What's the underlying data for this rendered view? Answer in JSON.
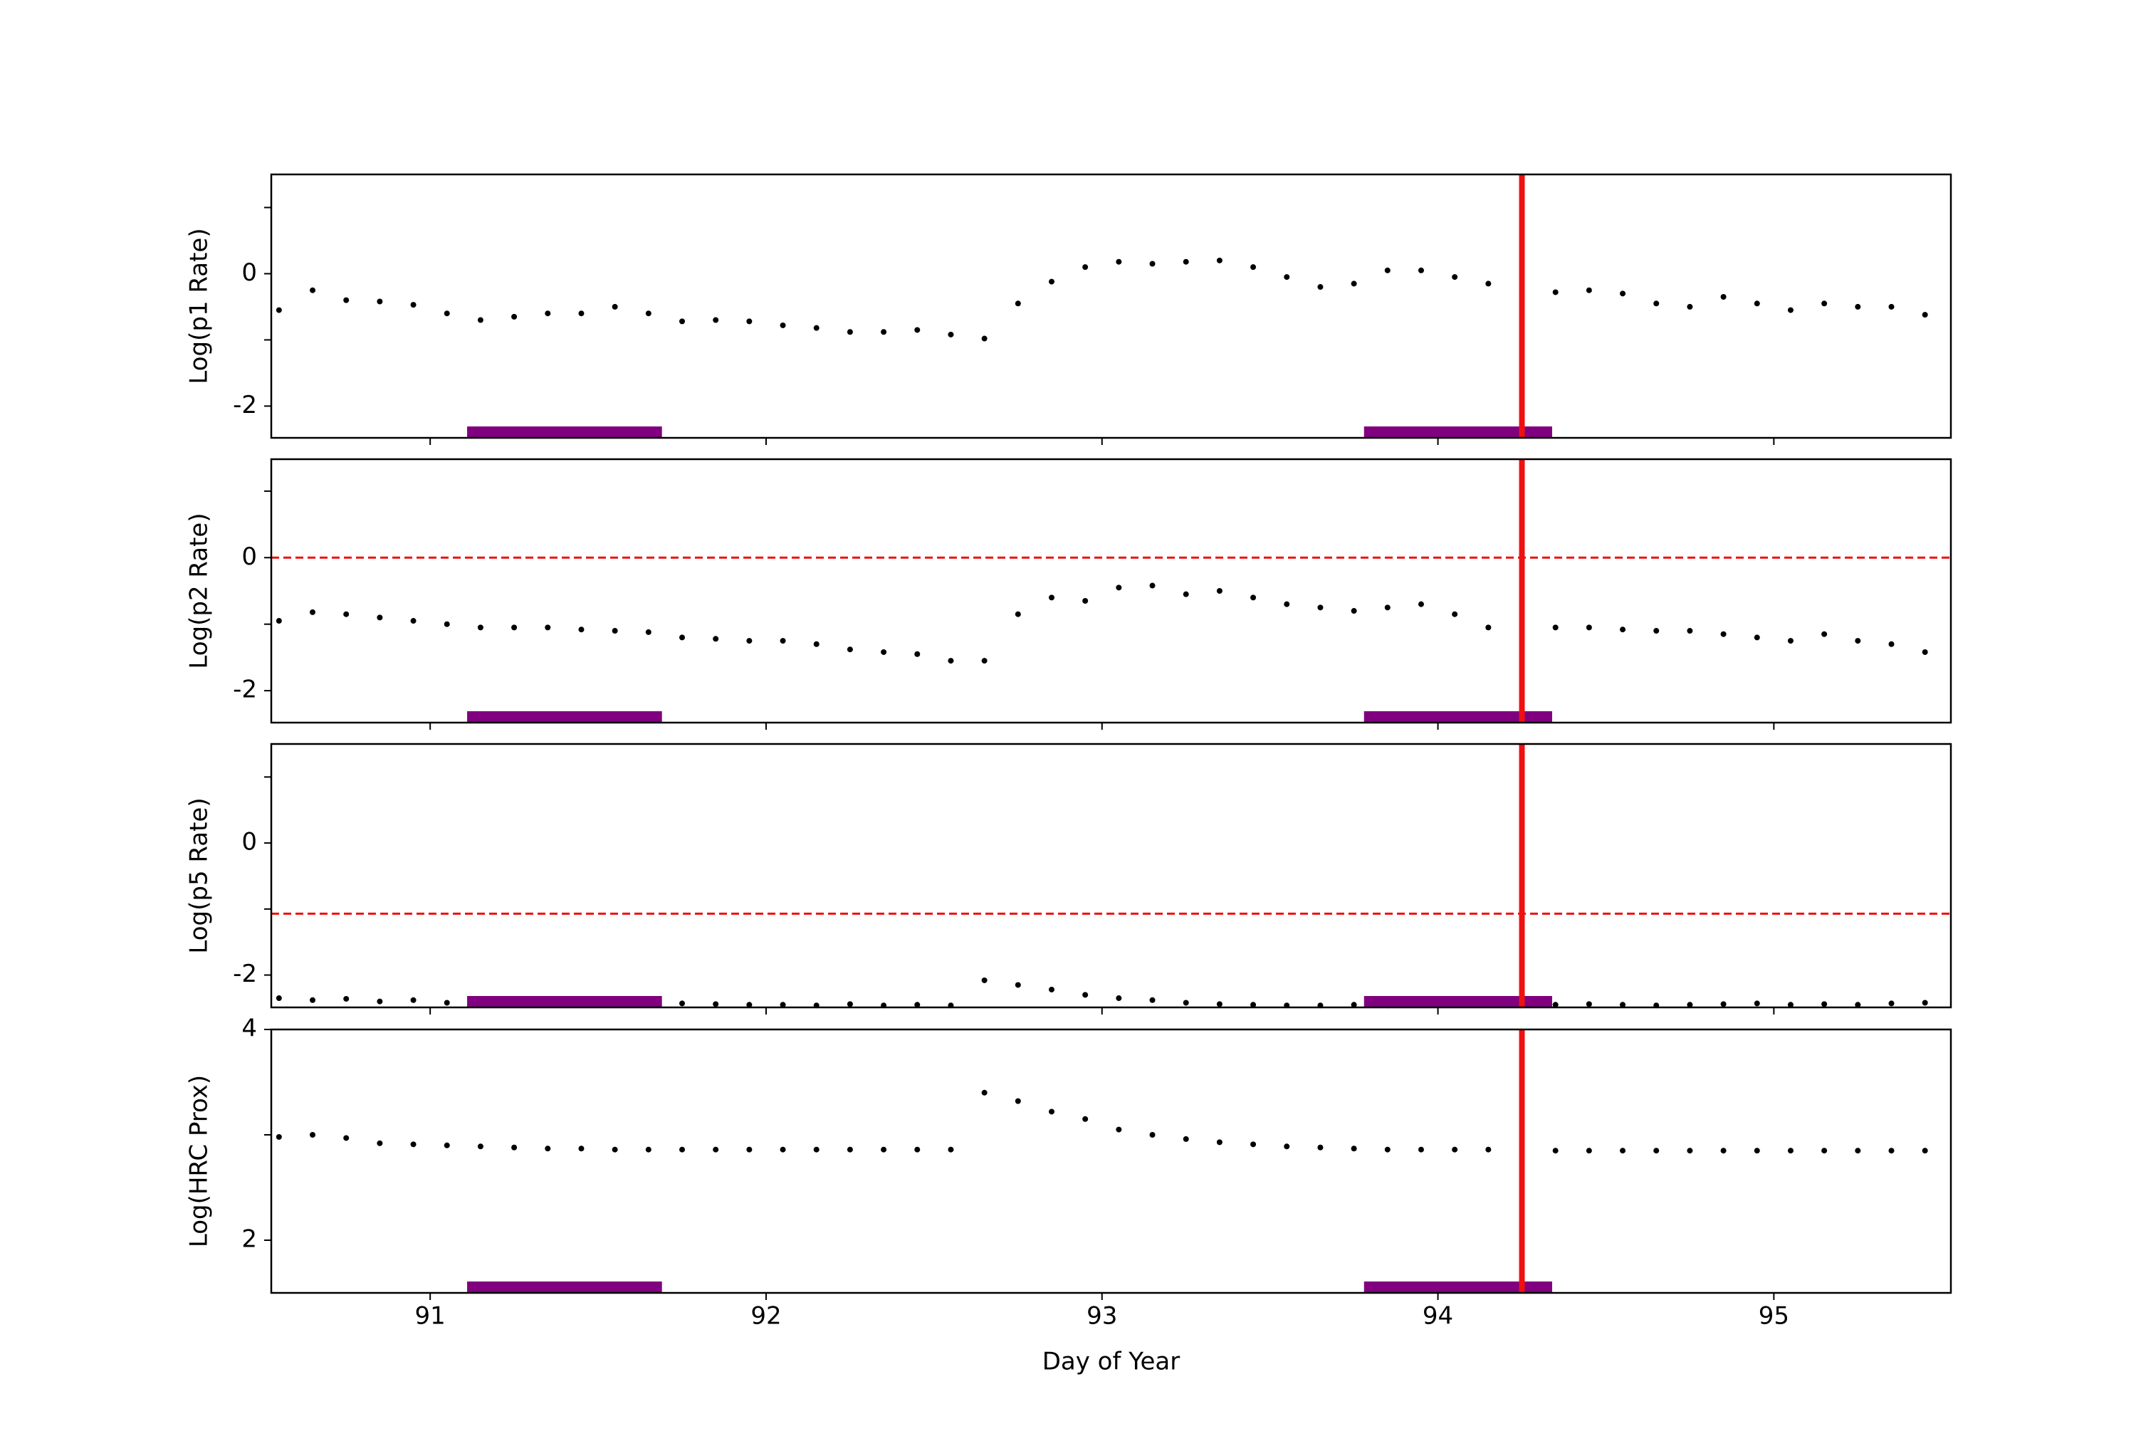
{
  "chart_data": [
    {
      "type": "scatter",
      "ylabel": "Log(p1 Rate)",
      "xlim": [
        90.527,
        95.527
      ],
      "ylim": [
        -2.48,
        1.5
      ],
      "xticks": [
        91,
        92,
        93,
        94,
        95
      ],
      "yticks": [
        -2,
        0
      ],
      "yticks_minor": [
        -1,
        1
      ],
      "color": "#000000",
      "x": [
        90.55,
        90.65,
        90.75,
        90.85,
        90.95,
        91.05,
        91.15,
        91.25,
        91.35,
        91.45,
        91.55,
        91.65,
        91.75,
        91.85,
        91.95,
        92.05,
        92.15,
        92.25,
        92.35,
        92.45,
        92.55,
        92.65,
        92.75,
        92.85,
        92.95,
        93.05,
        93.15,
        93.25,
        93.35,
        93.45,
        93.55,
        93.65,
        93.75,
        93.85,
        93.95,
        94.05,
        94.15,
        94.25,
        94.35,
        94.45,
        94.55,
        94.65,
        94.75,
        94.85,
        94.95,
        95.05,
        95.15,
        95.25,
        95.35,
        95.45
      ],
      "values": [
        -0.55,
        -0.25,
        -0.4,
        -0.42,
        -0.47,
        -0.6,
        -0.7,
        -0.65,
        -0.6,
        -0.6,
        -0.5,
        -0.6,
        -0.72,
        -0.7,
        -0.72,
        -0.78,
        -0.82,
        -0.88,
        -0.88,
        -0.85,
        -0.92,
        -0.98,
        -0.45,
        -0.12,
        0.1,
        0.18,
        0.15,
        0.18,
        0.2,
        0.1,
        -0.05,
        -0.2,
        -0.15,
        0.05,
        0.05,
        -0.05,
        -0.15,
        -0.25,
        -0.28,
        -0.25,
        -0.3,
        -0.45,
        -0.5,
        -0.35,
        -0.45,
        -0.55,
        -0.45,
        -0.5,
        -0.5,
        -0.62
      ],
      "vline": {
        "value": 94.25,
        "color": "#ee1111"
      },
      "intervals": {
        "color": "#800080",
        "ranges": [
          [
            91.11,
            91.69
          ],
          [
            93.78,
            94.34
          ]
        ]
      }
    },
    {
      "type": "scatter",
      "ylabel": "Log(p2 Rate)",
      "xlim": [
        90.527,
        95.527
      ],
      "ylim": [
        -2.48,
        1.48
      ],
      "xticks": [
        91,
        92,
        93,
        94,
        95
      ],
      "yticks": [
        -2,
        0
      ],
      "yticks_minor": [
        -1,
        1
      ],
      "color": "#000000",
      "x": [
        90.55,
        90.65,
        90.75,
        90.85,
        90.95,
        91.05,
        91.15,
        91.25,
        91.35,
        91.45,
        91.55,
        91.65,
        91.75,
        91.85,
        91.95,
        92.05,
        92.15,
        92.25,
        92.35,
        92.45,
        92.55,
        92.65,
        92.75,
        92.85,
        92.95,
        93.05,
        93.15,
        93.25,
        93.35,
        93.45,
        93.55,
        93.65,
        93.75,
        93.85,
        93.95,
        94.05,
        94.15,
        94.25,
        94.35,
        94.45,
        94.55,
        94.65,
        94.75,
        94.85,
        94.95,
        95.05,
        95.15,
        95.25,
        95.35,
        95.45
      ],
      "values": [
        -0.95,
        -0.82,
        -0.85,
        -0.9,
        -0.95,
        -1.0,
        -1.05,
        -1.05,
        -1.05,
        -1.08,
        -1.1,
        -1.12,
        -1.2,
        -1.22,
        -1.25,
        -1.25,
        -1.3,
        -1.38,
        -1.42,
        -1.45,
        -1.55,
        -1.55,
        -0.85,
        -0.6,
        -0.65,
        -0.45,
        -0.42,
        -0.55,
        -0.5,
        -0.6,
        -0.7,
        -0.75,
        -0.8,
        -0.75,
        -0.7,
        -0.85,
        -1.05,
        -1.08,
        -1.05,
        -1.05,
        -1.08,
        -1.1,
        -1.1,
        -1.15,
        -1.2,
        -1.25,
        -1.15,
        -1.25,
        -1.3,
        -1.42
      ],
      "hline": {
        "value": 0,
        "color": "#ee1111"
      },
      "vline": {
        "value": 94.25,
        "color": "#ee1111"
      },
      "intervals": {
        "color": "#800080",
        "ranges": [
          [
            91.11,
            91.69
          ],
          [
            93.78,
            94.34
          ]
        ]
      }
    },
    {
      "type": "scatter",
      "ylabel": "Log(p5 Rate)",
      "xlim": [
        90.527,
        95.527
      ],
      "ylim": [
        -2.49,
        1.5
      ],
      "xticks": [
        91,
        92,
        93,
        94,
        95
      ],
      "yticks": [
        -2,
        0
      ],
      "yticks_minor": [
        -1,
        1
      ],
      "color": "#000000",
      "x": [
        90.55,
        90.65,
        90.75,
        90.85,
        90.95,
        91.05,
        91.15,
        91.25,
        91.35,
        91.45,
        91.55,
        91.65,
        91.75,
        91.85,
        91.95,
        92.05,
        92.15,
        92.25,
        92.35,
        92.45,
        92.55,
        92.65,
        92.75,
        92.85,
        92.95,
        93.05,
        93.15,
        93.25,
        93.35,
        93.45,
        93.55,
        93.65,
        93.75,
        93.85,
        93.95,
        94.05,
        94.15,
        94.25,
        94.35,
        94.45,
        94.55,
        94.65,
        94.75,
        94.85,
        94.95,
        95.05,
        95.15,
        95.25,
        95.35,
        95.45
      ],
      "values": [
        -2.35,
        -2.38,
        -2.36,
        -2.4,
        -2.38,
        -2.42,
        -2.4,
        -2.42,
        -2.4,
        -2.44,
        -2.42,
        -2.45,
        -2.43,
        -2.44,
        -2.45,
        -2.45,
        -2.46,
        -2.44,
        -2.46,
        -2.45,
        -2.46,
        -2.08,
        -2.15,
        -2.22,
        -2.3,
        -2.35,
        -2.38,
        -2.42,
        -2.44,
        -2.45,
        -2.46,
        -2.46,
        -2.45,
        -2.46,
        -2.45,
        -2.44,
        -2.45,
        -2.46,
        -2.45,
        -2.44,
        -2.45,
        -2.46,
        -2.45,
        -2.44,
        -2.43,
        -2.45,
        -2.44,
        -2.45,
        -2.43,
        -2.42
      ],
      "hline": {
        "value": -1.07,
        "color": "#ee1111"
      },
      "vline": {
        "value": 94.25,
        "color": "#ee1111"
      },
      "intervals": {
        "color": "#800080",
        "ranges": [
          [
            91.11,
            91.69
          ],
          [
            93.78,
            94.34
          ]
        ]
      }
    },
    {
      "type": "scatter",
      "ylabel": "Log(HRC Prox)",
      "xlabel": "Day of Year",
      "xtick_labels": true,
      "xlim": [
        90.527,
        95.527
      ],
      "ylim": [
        1.5,
        4
      ],
      "xticks": [
        91,
        92,
        93,
        94,
        95
      ],
      "yticks": [
        2,
        4
      ],
      "yticks_minor": [
        3
      ],
      "color": "#000000",
      "x": [
        90.55,
        90.65,
        90.75,
        90.85,
        90.95,
        91.05,
        91.15,
        91.25,
        91.35,
        91.45,
        91.55,
        91.65,
        91.75,
        91.85,
        91.95,
        92.05,
        92.15,
        92.25,
        92.35,
        92.45,
        92.55,
        92.65,
        92.75,
        92.85,
        92.95,
        93.05,
        93.15,
        93.25,
        93.35,
        93.45,
        93.55,
        93.65,
        93.75,
        93.85,
        93.95,
        94.05,
        94.15,
        94.25,
        94.35,
        94.45,
        94.55,
        94.65,
        94.75,
        94.85,
        94.95,
        95.05,
        95.15,
        95.25,
        95.35,
        95.45
      ],
      "values": [
        2.98,
        3.0,
        2.97,
        2.92,
        2.91,
        2.9,
        2.89,
        2.88,
        2.87,
        2.87,
        2.86,
        2.86,
        2.86,
        2.86,
        2.86,
        2.86,
        2.86,
        2.86,
        2.86,
        2.86,
        2.86,
        3.4,
        3.32,
        3.22,
        3.15,
        3.05,
        3.0,
        2.96,
        2.93,
        2.91,
        2.89,
        2.88,
        2.87,
        2.86,
        2.86,
        2.86,
        2.86,
        2.85,
        2.85,
        2.85,
        2.85,
        2.85,
        2.85,
        2.85,
        2.85,
        2.85,
        2.85,
        2.85,
        2.85,
        2.85
      ],
      "vline": {
        "value": 94.25,
        "color": "#ee1111"
      },
      "intervals": {
        "color": "#800080",
        "ranges": [
          [
            91.11,
            91.69
          ],
          [
            93.78,
            94.34
          ]
        ]
      }
    }
  ]
}
